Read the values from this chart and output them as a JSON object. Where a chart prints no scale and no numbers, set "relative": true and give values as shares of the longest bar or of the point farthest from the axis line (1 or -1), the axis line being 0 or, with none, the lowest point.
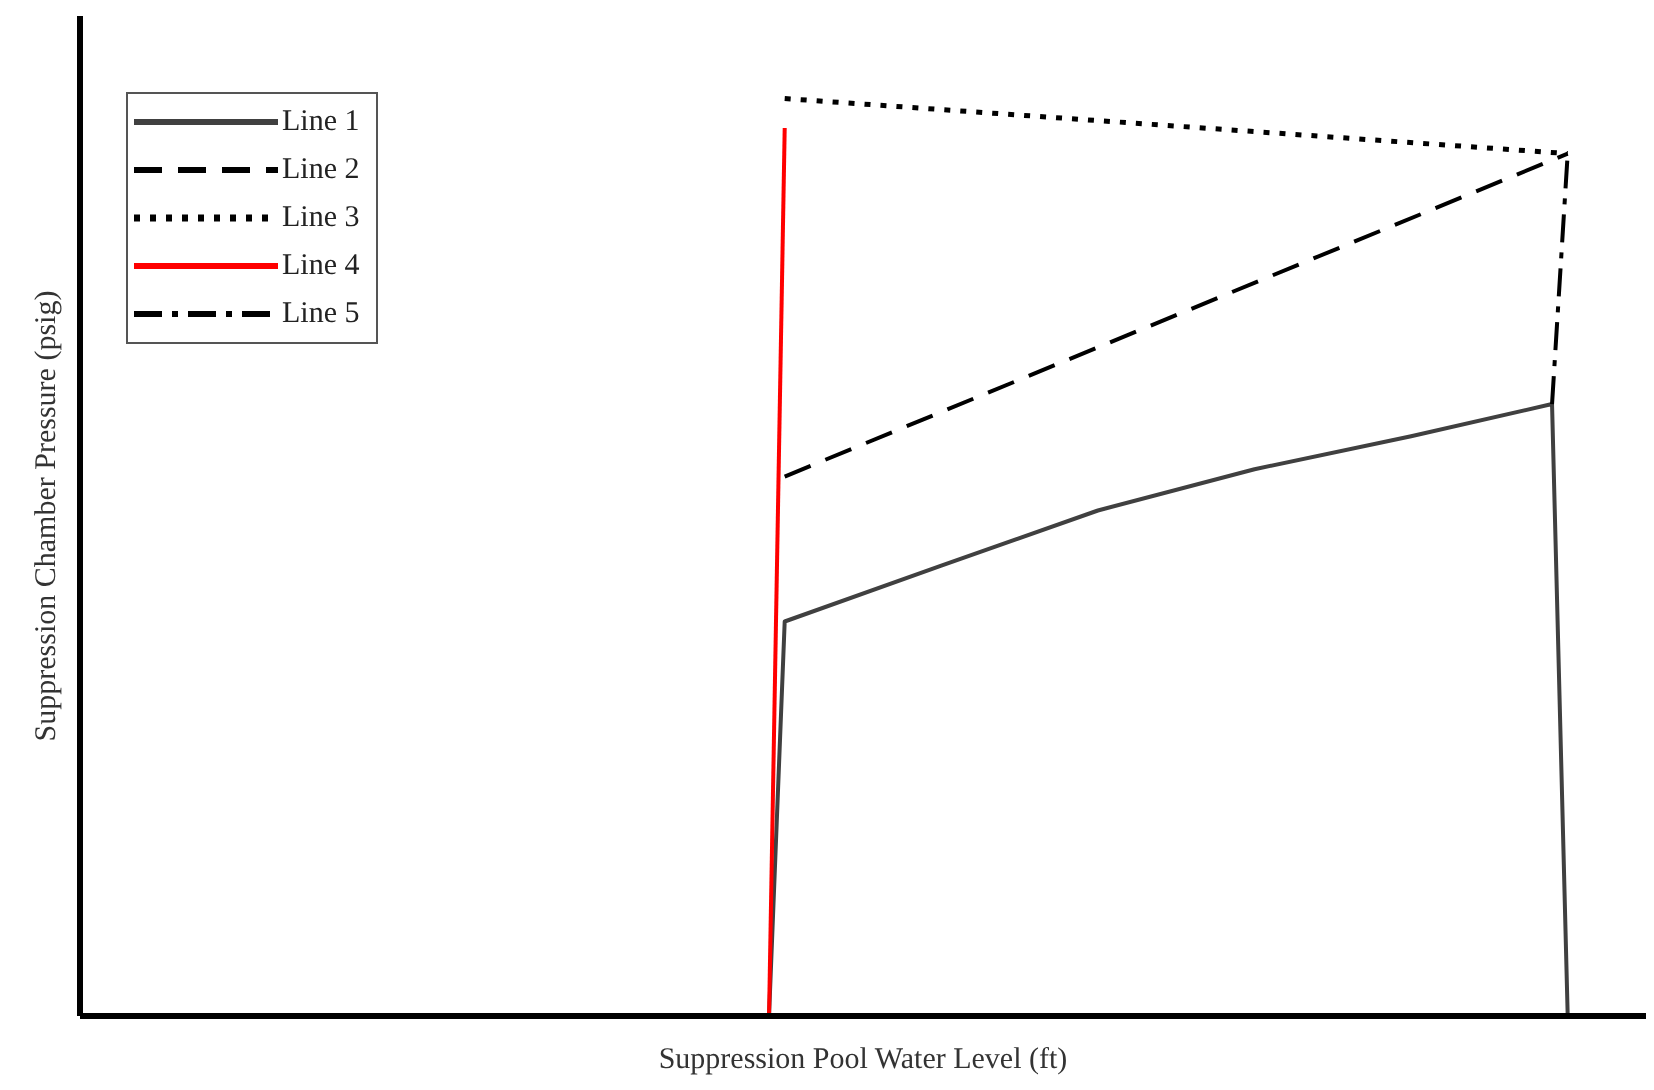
{
  "chart_data": {
    "type": "line",
    "relative": true,
    "xlabel": "Suppression Pool Water Level (ft)",
    "ylabel": "Suppression Chamber Pressure (psig)",
    "tick_labels": false,
    "legend": "top left",
    "marker": "none",
    "categories": [
      null,
      null,
      null,
      null,
      null,
      null,
      null,
      null,
      null,
      null,
      null,
      null,
      null,
      null,
      null,
      null,
      null,
      null,
      null,
      null,
      null,
      null,
      null,
      null,
      null,
      null,
      null,
      null,
      null,
      null,
      null,
      null,
      null,
      null,
      null,
      null,
      null,
      null,
      null,
      null,
      null,
      null,
      null,
      null,
      null,
      null,
      null,
      null,
      null,
      null,
      null,
      null,
      null,
      null,
      null,
      null,
      null,
      null,
      null,
      null,
      null,
      null,
      null,
      null,
      null,
      null,
      null,
      null,
      null,
      null,
      null,
      null,
      null,
      null,
      null,
      null,
      null,
      null,
      null,
      null,
      null,
      null,
      null,
      null,
      null,
      null,
      null,
      null,
      null,
      null,
      null,
      null,
      null,
      null,
      null,
      null,
      null,
      null,
      null,
      null,
      null
    ],
    "series": [
      {
        "name": "Line 1",
        "color": "#404040",
        "line_style": "solid",
        "values": [
          null,
          null,
          null,
          null,
          null,
          null,
          null,
          null,
          null,
          null,
          null,
          null,
          null,
          null,
          null,
          null,
          null,
          null,
          null,
          null,
          null,
          null,
          null,
          null,
          null,
          null,
          null,
          null,
          null,
          null,
          null,
          null,
          null,
          null,
          null,
          null,
          null,
          null,
          null,
          null,
          null,
          null,
          null,
          null,
          0,
          0.43,
          null,
          null,
          null,
          null,
          null,
          null,
          null,
          null,
          null,
          0.491,
          null,
          null,
          null,
          null,
          null,
          null,
          null,
          null,
          null,
          0.551,
          null,
          null,
          null,
          null,
          null,
          null,
          null,
          null,
          null,
          0.596,
          null,
          null,
          null,
          null,
          null,
          null,
          null,
          null,
          null,
          0.632,
          null,
          null,
          null,
          null,
          null,
          null,
          null,
          null,
          0.667,
          0,
          null,
          null,
          null,
          null,
          null
        ]
      },
      {
        "name": "Line 2",
        "color": "#000000",
        "line_style": "dashed",
        "values": [
          null,
          null,
          null,
          null,
          null,
          null,
          null,
          null,
          null,
          null,
          null,
          null,
          null,
          null,
          null,
          null,
          null,
          null,
          null,
          null,
          null,
          null,
          null,
          null,
          null,
          null,
          null,
          null,
          null,
          null,
          null,
          null,
          null,
          null,
          null,
          null,
          null,
          null,
          null,
          null,
          null,
          null,
          null,
          null,
          null,
          0.588,
          null,
          null,
          null,
          null,
          null,
          null,
          null,
          null,
          null,
          null,
          null,
          null,
          null,
          null,
          null,
          null,
          null,
          null,
          null,
          null,
          null,
          null,
          null,
          null,
          null,
          null,
          null,
          null,
          null,
          null,
          null,
          null,
          null,
          null,
          null,
          null,
          null,
          null,
          null,
          null,
          null,
          null,
          null,
          null,
          null,
          null,
          null,
          null,
          null,
          0.94,
          null,
          null,
          null,
          null,
          null
        ]
      },
      {
        "name": "Line 3",
        "color": "#000000",
        "line_style": "dotted",
        "values": [
          null,
          null,
          null,
          null,
          null,
          null,
          null,
          null,
          null,
          null,
          null,
          null,
          null,
          null,
          null,
          null,
          null,
          null,
          null,
          null,
          null,
          null,
          null,
          null,
          null,
          null,
          null,
          null,
          null,
          null,
          null,
          null,
          null,
          null,
          null,
          null,
          null,
          null,
          null,
          null,
          null,
          null,
          null,
          null,
          null,
          1,
          null,
          null,
          null,
          null,
          null,
          null,
          null,
          null,
          null,
          null,
          null,
          null,
          null,
          null,
          null,
          null,
          null,
          null,
          null,
          null,
          null,
          null,
          null,
          null,
          null,
          null,
          null,
          null,
          null,
          null,
          null,
          null,
          null,
          null,
          null,
          null,
          null,
          null,
          null,
          null,
          null,
          null,
          null,
          null,
          null,
          null,
          null,
          null,
          null,
          0.94,
          null,
          null,
          null,
          null,
          null
        ]
      },
      {
        "name": "Line 4",
        "color": "#ff0000",
        "line_style": "solid",
        "values": [
          null,
          null,
          null,
          null,
          null,
          null,
          null,
          null,
          null,
          null,
          null,
          null,
          null,
          null,
          null,
          null,
          null,
          null,
          null,
          null,
          null,
          null,
          null,
          null,
          null,
          null,
          null,
          null,
          null,
          null,
          null,
          null,
          null,
          null,
          null,
          null,
          null,
          null,
          null,
          null,
          null,
          null,
          null,
          null,
          0,
          0.968,
          null,
          null,
          null,
          null,
          null,
          null,
          null,
          null,
          null,
          null,
          null,
          null,
          null,
          null,
          null,
          null,
          null,
          null,
          null,
          null,
          null,
          null,
          null,
          null,
          null,
          null,
          null,
          null,
          null,
          null,
          null,
          null,
          null,
          null,
          null,
          null,
          null,
          null,
          null,
          null,
          null,
          null,
          null,
          null,
          null,
          null,
          null,
          null,
          null,
          null,
          null,
          null,
          null,
          null,
          null
        ]
      },
      {
        "name": "Line 5",
        "color": "#000000",
        "line_style": "dashdot",
        "values": [
          null,
          null,
          null,
          null,
          null,
          null,
          null,
          null,
          null,
          null,
          null,
          null,
          null,
          null,
          null,
          null,
          null,
          null,
          null,
          null,
          null,
          null,
          null,
          null,
          null,
          null,
          null,
          null,
          null,
          null,
          null,
          null,
          null,
          null,
          null,
          null,
          null,
          null,
          null,
          null,
          null,
          null,
          null,
          null,
          null,
          null,
          null,
          null,
          null,
          null,
          null,
          null,
          null,
          null,
          null,
          null,
          null,
          null,
          null,
          null,
          null,
          null,
          null,
          null,
          null,
          null,
          null,
          null,
          null,
          null,
          null,
          null,
          null,
          null,
          null,
          null,
          null,
          null,
          null,
          null,
          null,
          null,
          null,
          null,
          null,
          null,
          null,
          null,
          null,
          null,
          null,
          null,
          null,
          null,
          0.667,
          0.94,
          null,
          null,
          null,
          null,
          null
        ]
      }
    ]
  }
}
